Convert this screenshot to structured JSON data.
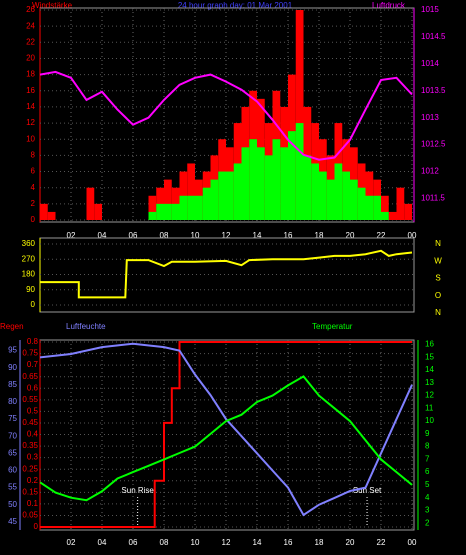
{
  "chart_data": [
    {
      "type": "bar",
      "title": "24 hour graph day: 01 Mar 2001",
      "ylabel": "Windstärke",
      "y2label": "Luftdruck",
      "x": [
        0,
        0.5,
        1,
        1.5,
        2,
        2.5,
        3,
        3.5,
        4,
        4.5,
        5,
        5.5,
        6,
        6.5,
        7,
        7.5,
        8,
        8.5,
        9,
        9.5,
        10,
        10.5,
        11,
        11.5,
        12,
        12.5,
        13,
        13.5,
        14,
        14.5,
        15,
        15.5,
        16,
        16.5,
        17,
        17.5,
        18,
        18.5,
        19,
        19.5,
        20,
        20.5,
        21,
        21.5,
        22,
        22.5,
        23,
        23.5
      ],
      "xlim": [
        0,
        24
      ],
      "xticks": [
        {
          "value": 2,
          "label": "02"
        },
        {
          "value": 4,
          "label": "04"
        },
        {
          "value": 6,
          "label": "06"
        },
        {
          "value": 8,
          "label": "08"
        },
        10,
        12,
        14,
        16,
        18,
        20,
        22,
        {
          "value": 24,
          "label": "00"
        }
      ],
      "ylim": [
        0,
        26
      ],
      "yticks": [
        0,
        2,
        4,
        6,
        8,
        10,
        12,
        14,
        16,
        18,
        20,
        22,
        24,
        26
      ],
      "ycolor": "#ff0000",
      "y2lim": [
        1011.1,
        1015
      ],
      "y2ticks": [
        1011.5,
        1012,
        1012.5,
        1013,
        1013.5,
        1014,
        1014.5,
        1015
      ],
      "y2color": "#ff00ff",
      "grid": true,
      "series": [
        {
          "color": "#ff0000",
          "values": [
            2,
            1,
            0,
            0,
            0,
            0,
            4,
            2,
            0,
            0,
            0,
            0,
            0,
            0,
            3,
            4,
            5,
            4,
            6,
            7,
            5,
            6,
            8,
            10,
            9,
            12,
            14,
            16,
            15,
            12,
            16,
            14,
            18,
            26,
            14,
            12,
            10,
            8,
            12,
            10,
            9,
            7,
            6,
            5,
            3,
            1,
            4,
            2
          ]
        },
        {
          "color": "#00ff00",
          "values": [
            0,
            0,
            0,
            0,
            0,
            0,
            0,
            0,
            0,
            0,
            0,
            0,
            0,
            0,
            1,
            2,
            2,
            2,
            3,
            3,
            3,
            4,
            5,
            6,
            6,
            7,
            9,
            10,
            9,
            8,
            10,
            9,
            11,
            12,
            8,
            7,
            6,
            5,
            7,
            6,
            5,
            4,
            3,
            3,
            1,
            0,
            0,
            0
          ]
        },
        {
          "type": "line",
          "axis": "y2",
          "color": "#ff00ff",
          "x": [
            0,
            1,
            2,
            3,
            4,
            5,
            6,
            7,
            8,
            9,
            10,
            11,
            12,
            13,
            14,
            15,
            16,
            17,
            18,
            19,
            20,
            21,
            22,
            23,
            24
          ],
          "values": [
            1013.8,
            1013.85,
            1013.74,
            1013.33,
            1013.48,
            1013.15,
            1012.87,
            1013,
            1013.33,
            1013.61,
            1013.74,
            1013.8,
            1013.67,
            1013.52,
            1013.3,
            1012.96,
            1012.59,
            1012.31,
            1012.22,
            1012.26,
            1012.59,
            1013.15,
            1013.7,
            1013.74,
            1013.43
          ]
        }
      ]
    },
    {
      "type": "line",
      "xlim": [
        0,
        24
      ],
      "ylim": [
        0,
        360
      ],
      "yticks": [
        0,
        90,
        180,
        270,
        360
      ],
      "ycolor": "#ffff00",
      "direction_labels": [
        "N",
        "W",
        "S",
        "O",
        "N"
      ],
      "grid": true,
      "series": [
        {
          "color": "#ffff00",
          "x": [
            0,
            2.5,
            2.5,
            5.5,
            5.6,
            7,
            8,
            8.5,
            10,
            12,
            13,
            13.5,
            15,
            17,
            18,
            19,
            20,
            21,
            22,
            22.5,
            23,
            24
          ],
          "values": [
            135,
            135,
            45,
            45,
            265,
            265,
            230,
            255,
            255,
            260,
            235,
            265,
            270,
            270,
            280,
            290,
            290,
            300,
            320,
            290,
            300,
            310
          ]
        }
      ]
    },
    {
      "type": "line",
      "ylabel": "Regen",
      "y3label": "Luftfeuchte",
      "y2label": "Temperatur",
      "xlim": [
        0,
        24
      ],
      "xticks": [
        {
          "value": 2,
          "label": "02"
        },
        {
          "value": 4,
          "label": "04"
        },
        {
          "value": 6,
          "label": "06"
        },
        {
          "value": 8,
          "label": "08"
        },
        10,
        12,
        14,
        16,
        18,
        20,
        22,
        {
          "value": 24,
          "label": "00"
        }
      ],
      "ylim": [
        0,
        0.8
      ],
      "yticks": [
        0,
        0.05,
        0.1,
        0.15,
        0.2,
        0.25,
        0.3,
        0.35,
        0.4,
        0.45,
        0.5,
        0.55,
        0.6,
        0.65,
        0.7,
        0.75,
        0.8
      ],
      "ycolor": "#ff0000",
      "y3lim": [
        43.5,
        97.5
      ],
      "y3ticks": [
        45,
        50,
        55,
        60,
        65,
        70,
        75,
        80,
        85,
        90,
        95
      ],
      "y3color": "#8080ff",
      "y2lim": [
        1.7,
        16.2
      ],
      "y2ticks": [
        2,
        3,
        4,
        5,
        6,
        7,
        8,
        9,
        10,
        11,
        12,
        13,
        14,
        15,
        16
      ],
      "y2color": "#00ff00",
      "grid": true,
      "annotations": [
        {
          "text": "Sun Rise",
          "x": 6.3
        },
        {
          "text": "Sun Set",
          "x": 21.1
        }
      ],
      "series": [
        {
          "axis": "y",
          "color": "#ff0000",
          "x": [
            0,
            7.4,
            7.4,
            8,
            8,
            8.5,
            8.5,
            9,
            9,
            24
          ],
          "values": [
            0,
            0,
            0.2,
            0.2,
            0.45,
            0.45,
            0.6,
            0.6,
            0.8,
            0.8
          ]
        },
        {
          "axis": "y3",
          "color": "#8080ff",
          "x": [
            0,
            2,
            4,
            6,
            8,
            9,
            10,
            11,
            12,
            13,
            14,
            15,
            16,
            17,
            18,
            19,
            20,
            21,
            22,
            23,
            24
          ],
          "values": [
            93,
            94,
            96,
            97,
            96,
            95,
            88,
            82,
            75,
            70,
            65,
            60,
            55,
            47,
            50,
            52,
            54,
            55,
            65,
            75,
            85
          ]
        },
        {
          "axis": "y2",
          "color": "#00ff00",
          "x": [
            0,
            1,
            2,
            3,
            4,
            5,
            6,
            7,
            8,
            9,
            10,
            11,
            12,
            13,
            14,
            15,
            16,
            17,
            18,
            19,
            20,
            21,
            22,
            23,
            24
          ],
          "values": [
            5.2,
            4.4,
            4,
            3.8,
            4.5,
            5.5,
            6,
            6.5,
            7,
            7.5,
            8,
            9,
            10,
            10.5,
            11.5,
            12,
            12.8,
            13.5,
            12,
            11,
            10,
            8.5,
            7,
            6,
            5
          ]
        }
      ]
    }
  ]
}
